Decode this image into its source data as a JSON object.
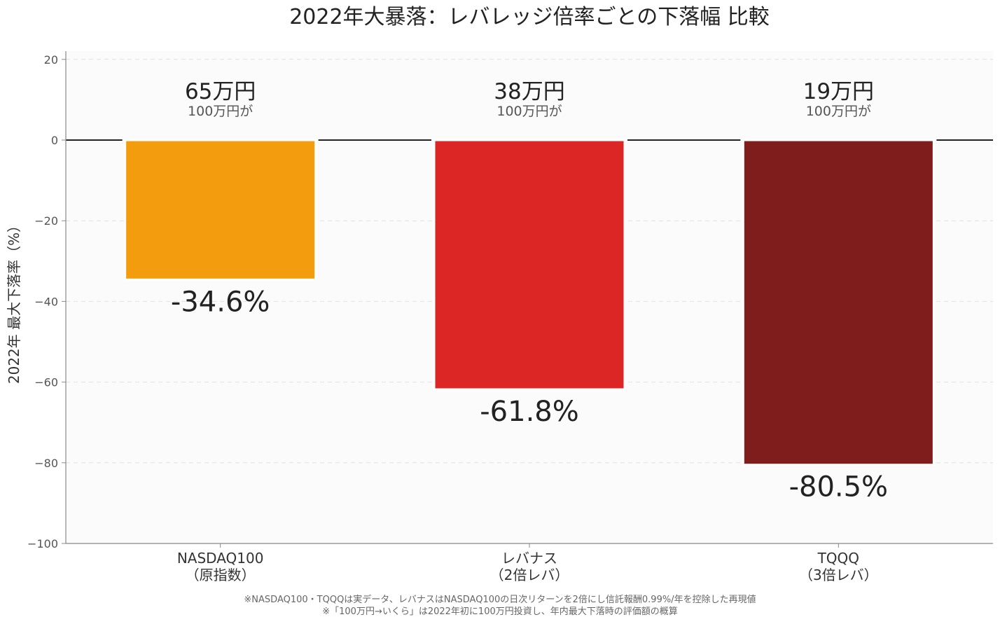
{
  "chart_data": {
    "type": "bar",
    "title": "2022年大暴落：レバレッジ倍率ごとの下落幅 比較",
    "ylabel": "2022年 最大下落率（%）",
    "xlabel": "",
    "ylim": [
      -100,
      22
    ],
    "yticks": [
      20,
      0,
      -20,
      -40,
      -60,
      -80,
      -100
    ],
    "ytick_labels": [
      "20",
      "0",
      "−20",
      "−40",
      "−60",
      "−80",
      "−100"
    ],
    "grid": "y-dashed",
    "categories": [
      [
        "NASDAQ100",
        "（原指数）"
      ],
      [
        "レバナス",
        "（2倍レバ）"
      ],
      [
        "TQQQ",
        "（3倍レバ）"
      ]
    ],
    "values": [
      -34.6,
      -61.8,
      -80.5
    ],
    "value_labels": [
      "-34.6%",
      "-61.8%",
      "-80.5%"
    ],
    "colors": [
      "#F39C0E",
      "#DC2626",
      "#7F1D1D"
    ],
    "annotations": [
      {
        "main": "65万円",
        "sub": "100万円が"
      },
      {
        "main": "38万円",
        "sub": "100万円が"
      },
      {
        "main": "19万円",
        "sub": "100万円が"
      }
    ],
    "footnotes": [
      "※NASDAQ100・TQQQは実データ、レバナスはNASDAQ100の日次リターンを2倍にし信託報酬0.99%/年を控除した再現値",
      "※「100万円→いくら」は2022年初に100万円投資し、年内最大下落時の評価額の概算"
    ]
  }
}
